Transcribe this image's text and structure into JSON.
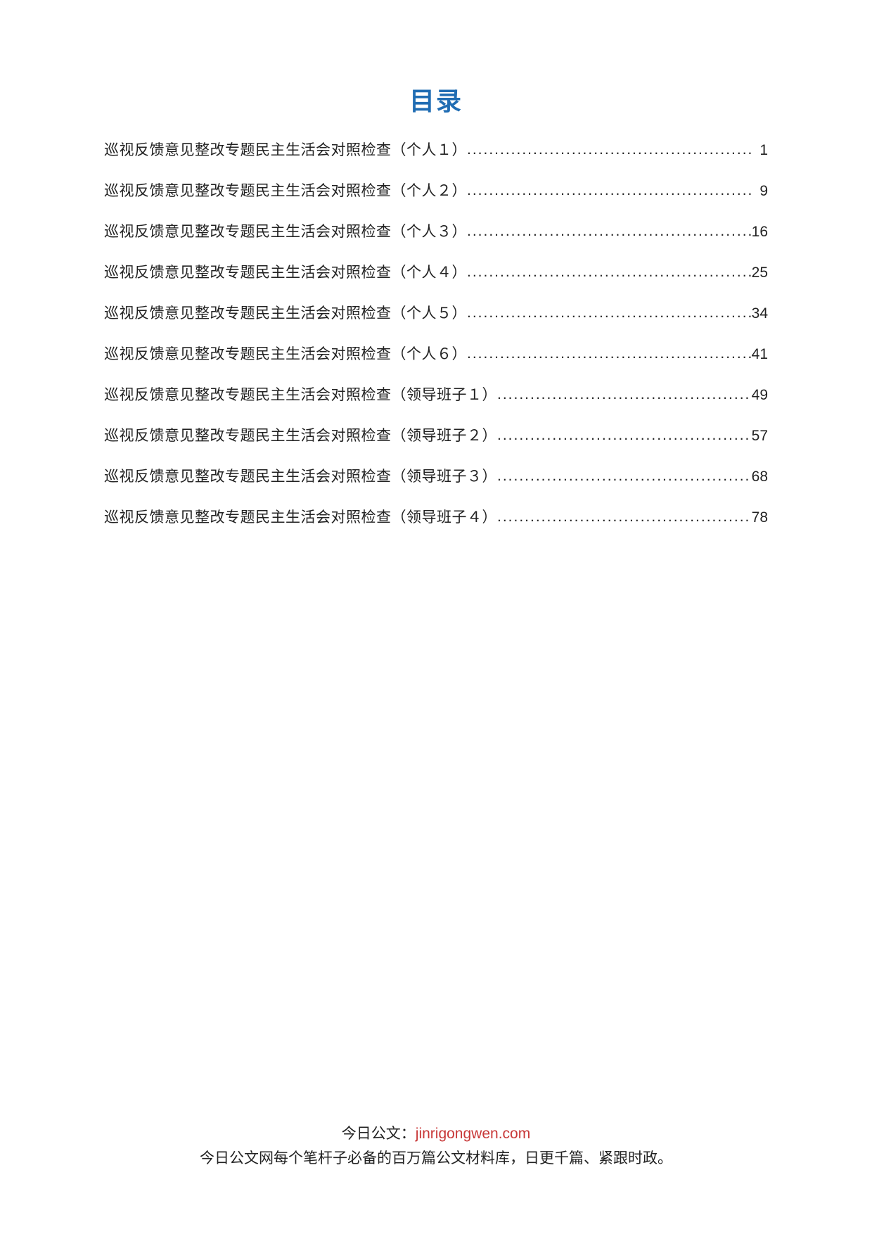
{
  "heading": "目录",
  "toc_entries": [
    {
      "title": "巡视反馈意见整改专题民主生活会对照检查（个人１）",
      "page": "1"
    },
    {
      "title": "巡视反馈意见整改专题民主生活会对照检查（个人２）",
      "page": "9"
    },
    {
      "title": "巡视反馈意见整改专题民主生活会对照检查（个人３）",
      "page": "16"
    },
    {
      "title": "巡视反馈意见整改专题民主生活会对照检查（个人４）",
      "page": "25"
    },
    {
      "title": "巡视反馈意见整改专题民主生活会对照检查（个人５）",
      "page": "34"
    },
    {
      "title": "巡视反馈意见整改专题民主生活会对照检查（个人６）",
      "page": "41"
    },
    {
      "title": "巡视反馈意见整改专题民主生活会对照检查（领导班子１）",
      "page": "49"
    },
    {
      "title": "巡视反馈意见整改专题民主生活会对照检查（领导班子２）",
      "page": "57"
    },
    {
      "title": "巡视反馈意见整改专题民主生活会对照检查（领导班子３）",
      "page": "68"
    },
    {
      "title": "巡视反馈意见整改专题民主生活会对照检查（领导班子４）",
      "page": "78"
    }
  ],
  "footer": {
    "label": "今日公文：",
    "domain": "jinrigongwen.com",
    "tagline": "今日公文网每个笔杆子必备的百万篇公文材料库，日更千篇、紧跟时政。"
  },
  "colors": {
    "heading": "#1f6cb3",
    "body_text": "#222222",
    "domain": "#c83838",
    "background": "#ffffff"
  },
  "typography": {
    "heading_fontsize": 36,
    "body_fontsize": 21,
    "footer_fontsize": 21
  }
}
